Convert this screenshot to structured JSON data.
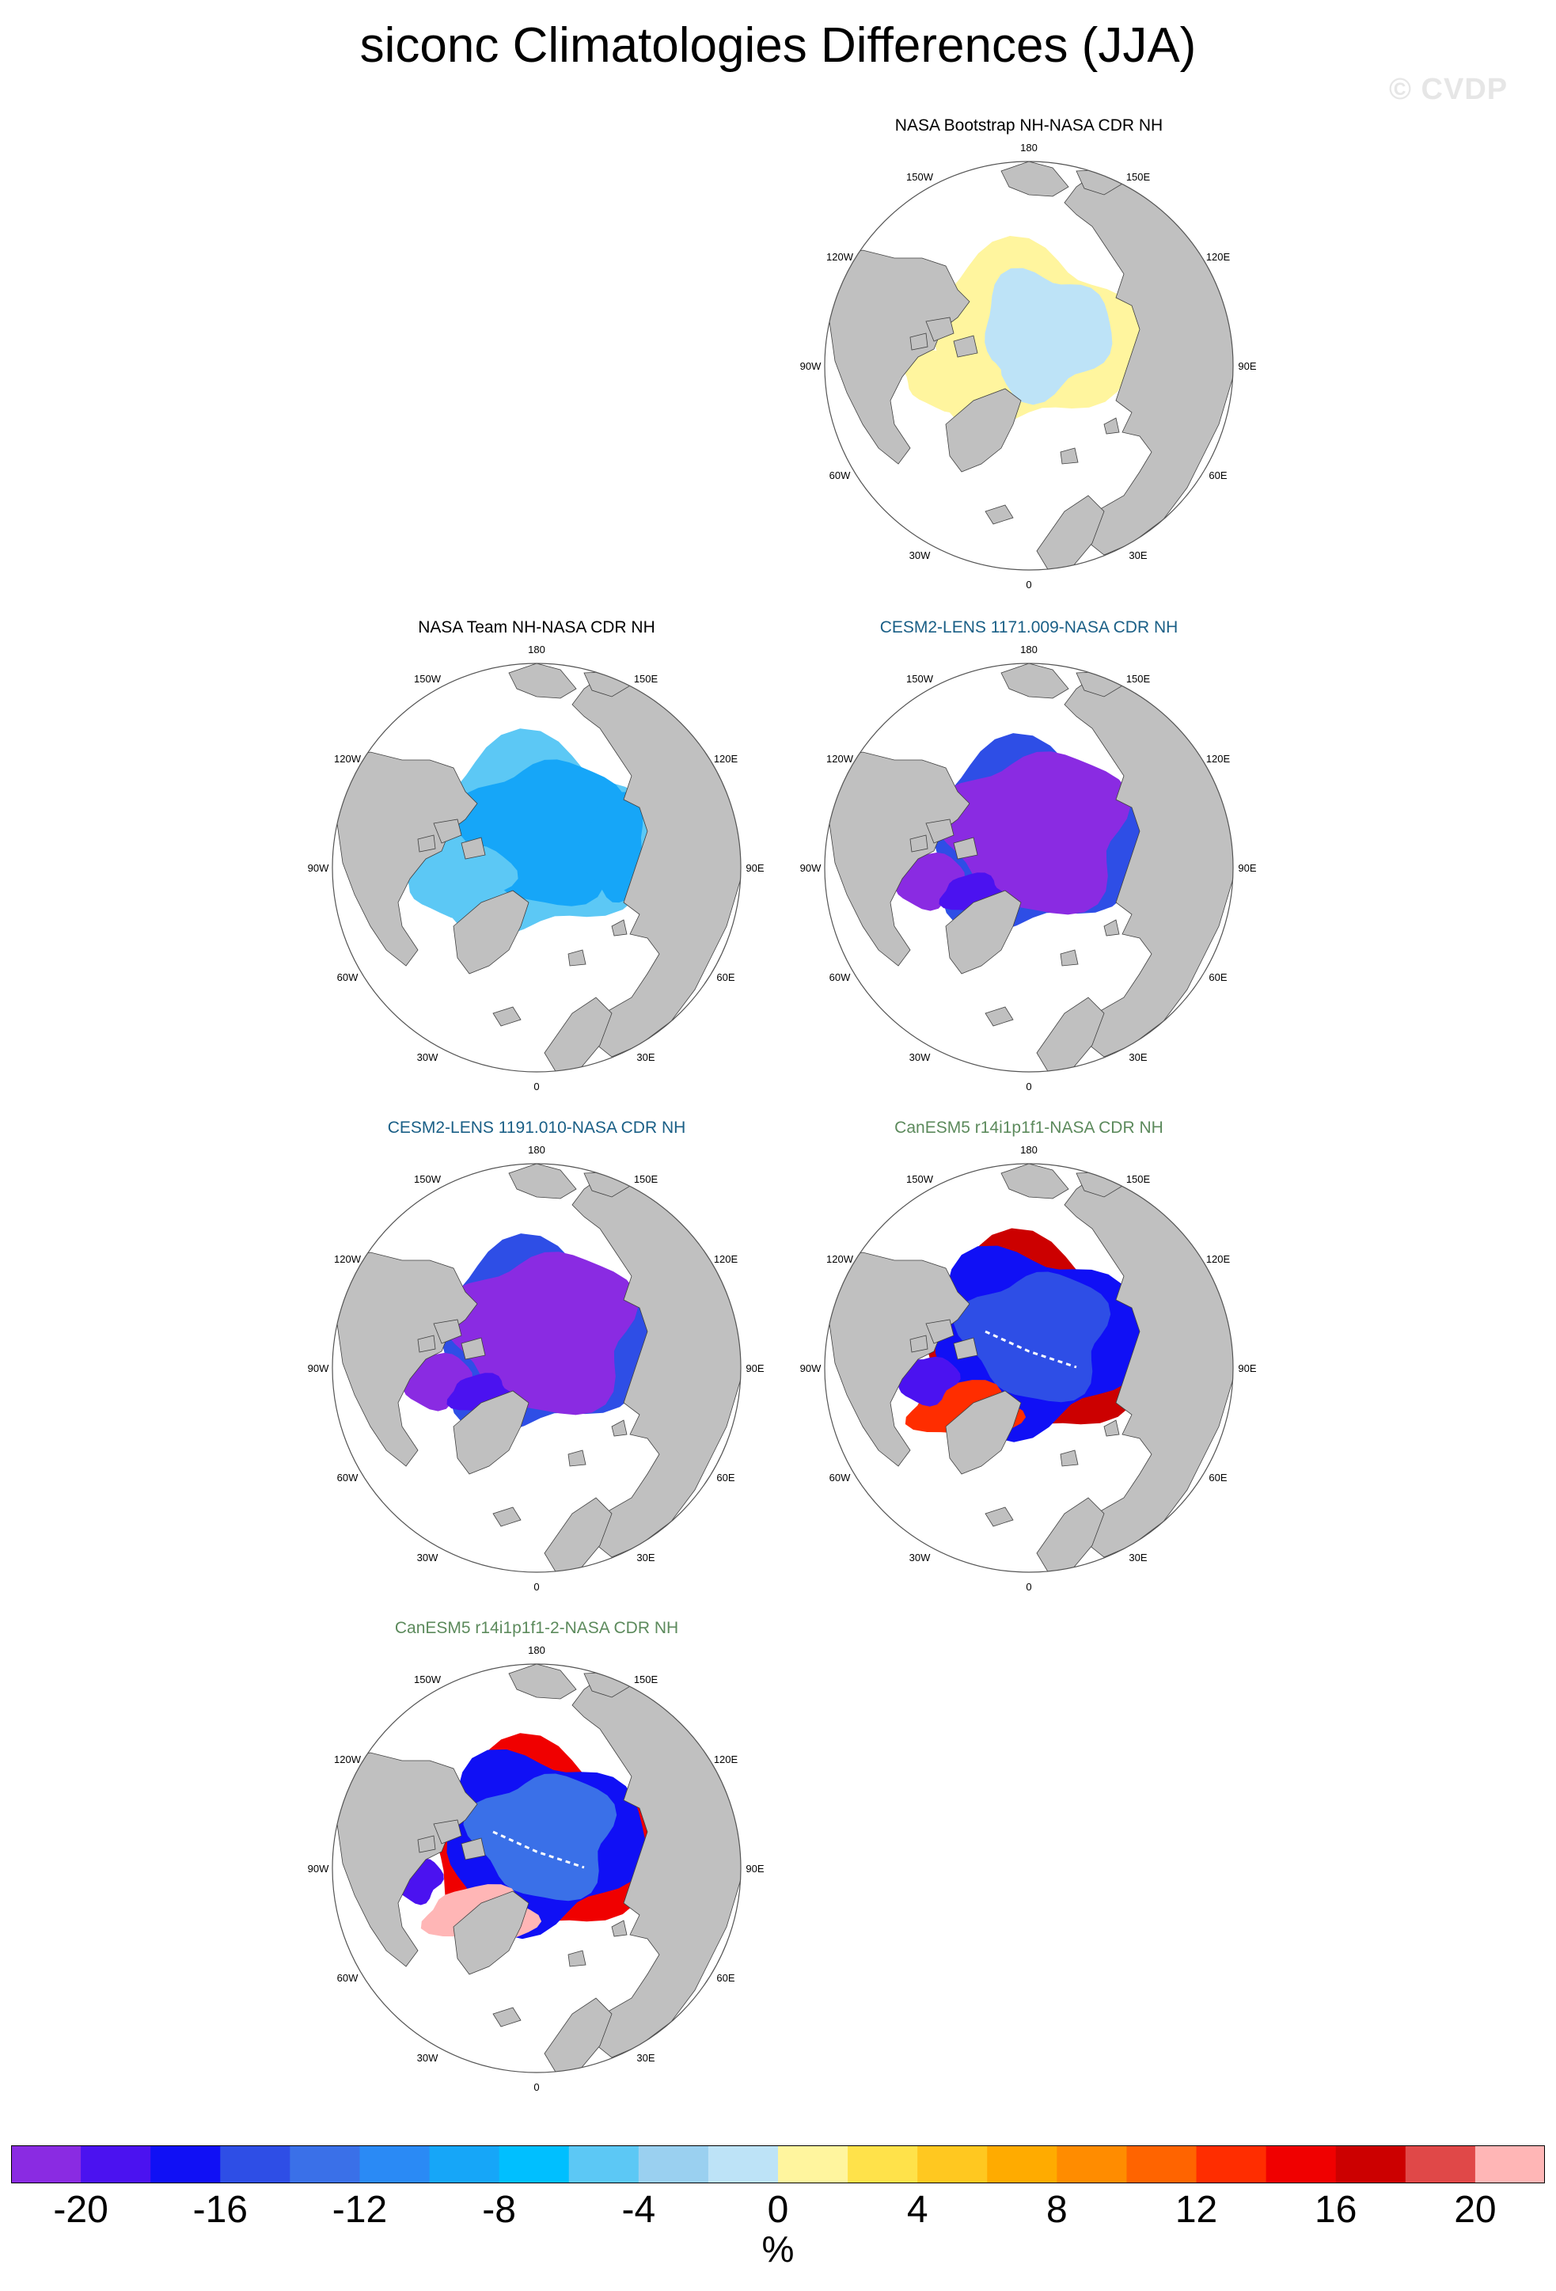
{
  "title": "siconc Climatologies Differences (JJA)",
  "watermark": "© CVDP",
  "lon_labels": [
    "180",
    "150E",
    "120E",
    "90E",
    "60E",
    "30E",
    "0",
    "30W",
    "60W",
    "90W",
    "120W",
    "150W"
  ],
  "panels": [
    {
      "title": "NASA Bootstrap NH-NASA CDR NH",
      "title_color": "#000000",
      "style": "bootstrap"
    },
    {
      "title": "NASA Team NH-NASA CDR NH",
      "title_color": "#000000",
      "style": "team"
    },
    {
      "title": "CESM2-LENS 1171.009-NASA CDR NH",
      "title_color": "#1a5f86",
      "style": "cesm"
    },
    {
      "title": "CESM2-LENS 1191.010-NASA CDR NH",
      "title_color": "#1a5f86",
      "style": "cesm"
    },
    {
      "title": "CanESM5 r14i1p1f1-NASA CDR NH",
      "title_color": "#5c8a5c",
      "style": "can"
    },
    {
      "title": "CanESM5 r14i1p1f1-2-NASA CDR NH",
      "title_color": "#5c8a5c",
      "style": "can2"
    }
  ],
  "colors": {
    "land": "#c0c0c0",
    "ocean": "#ffffff",
    "colorbar": [
      "#8a2be2",
      "#4b12f0",
      "#1010f5",
      "#2e4ee6",
      "#3a70e8",
      "#2a8af5",
      "#16a6f8",
      "#00bfff",
      "#5cc8f5",
      "#9ad0f0",
      "#bde3f7",
      "#fff59e",
      "#ffe24a",
      "#ffc820",
      "#ffab00",
      "#ff8c00",
      "#ff6400",
      "#ff2d00",
      "#f00000",
      "#cc0000",
      "#e04848",
      "#ffb6b6"
    ]
  },
  "colorbar_labels": [
    "-20",
    "-16",
    "-12",
    "-8",
    "-4",
    "0",
    "4",
    "8",
    "12",
    "16",
    "20"
  ],
  "units": "%"
}
